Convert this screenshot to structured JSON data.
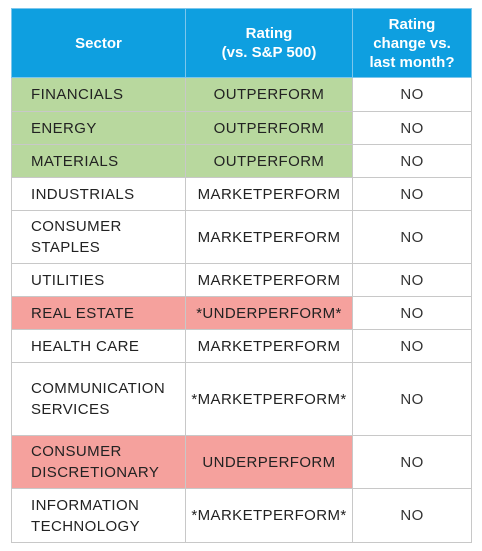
{
  "table": {
    "header": [
      "Sector",
      "Rating\n(vs. S&P 500)",
      "Rating\nchange vs.\nlast month?"
    ],
    "rows": [
      {
        "cells": [
          "FINANCIALS",
          "OUTPERFORM",
          "NO"
        ],
        "highlight": "#b8d89e"
      },
      {
        "cells": [
          "ENERGY",
          "OUTPERFORM",
          "NO"
        ],
        "highlight": "#b8d89e"
      },
      {
        "cells": [
          "MATERIALS",
          "OUTPERFORM",
          "NO"
        ],
        "highlight": "#b8d89e"
      },
      {
        "cells": [
          "INDUSTRIALS",
          "MARKETPERFORM",
          "NO"
        ]
      },
      {
        "cells": [
          "CONSUMER\nSTAPLES",
          "MARKETPERFORM",
          "NO"
        ]
      },
      {
        "cells": [
          "UTILITIES",
          "MARKETPERFORM",
          "NO"
        ]
      },
      {
        "cells": [
          "REAL ESTATE",
          "*UNDERPERFORM*",
          "NO"
        ],
        "highlight": "#f5a19d"
      },
      {
        "cells": [
          "HEALTH CARE",
          "MARKETPERFORM",
          "NO"
        ]
      },
      {
        "cells": [
          "COMMUNICATION\nSERVICES",
          "*MARKETPERFORM*",
          "NO"
        ]
      },
      {
        "cells": [
          "CONSUMER\nDISCRETIONARY",
          "UNDERPERFORM",
          "NO"
        ],
        "highlight": "#f5a19d"
      },
      {
        "cells": [
          "INFORMATION\nTECHNOLOGY",
          "*MARKETPERFORM*",
          "NO"
        ]
      }
    ]
  }
}
